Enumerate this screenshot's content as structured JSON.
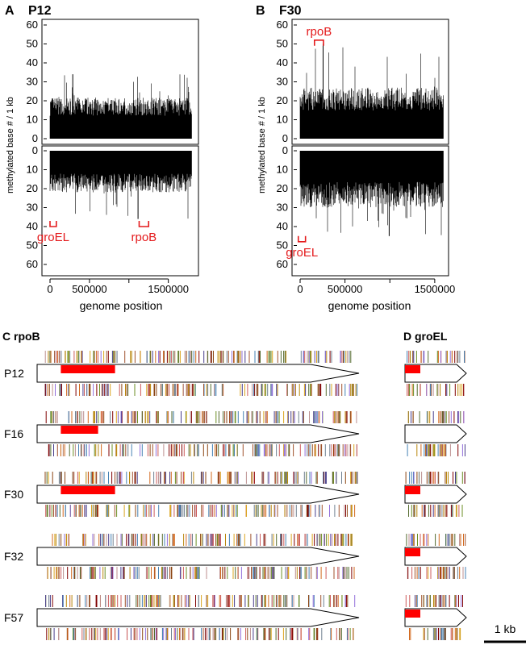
{
  "panels": {
    "A": {
      "letter": "A",
      "name": "P12"
    },
    "B": {
      "letter": "B",
      "name": "F30"
    },
    "C": {
      "title": "C rpoB"
    },
    "D": {
      "title": "D groEL"
    }
  },
  "colors": {
    "annotation_red": "#e41a1c",
    "bars": "#000000",
    "gene_fill": "#ffffff",
    "methylation_region": "#ff0000"
  },
  "chart_data": [
    {
      "type": "bar",
      "panel": "A",
      "title": "P12",
      "xlabel": "genome position",
      "ylabel": "methylated base # / 1 kb",
      "x_ticks": [
        "0",
        "500000",
        "1500000"
      ],
      "x_tick_values": [
        0,
        500000,
        1500000
      ],
      "xlim": [
        0,
        1800000
      ],
      "top_strand": {
        "ylim": [
          0,
          60
        ],
        "y_ticks": [
          "0",
          "10",
          "20",
          "30",
          "40",
          "50",
          "60"
        ],
        "typical_range": [
          0,
          22
        ],
        "max": 34
      },
      "bottom_strand": {
        "ylim": [
          0,
          60
        ],
        "y_ticks": [
          "0",
          "10",
          "20",
          "30",
          "40",
          "50",
          "60"
        ],
        "typical_range": [
          0,
          22
        ],
        "max": 36
      },
      "annotations": [
        {
          "label": "groEL",
          "strand": "bottom",
          "x_start": 0,
          "x_end": 80000,
          "depth": 40
        },
        {
          "label": "rpoB",
          "strand": "bottom",
          "x_start": 1130000,
          "x_end": 1250000,
          "depth": 40
        }
      ]
    },
    {
      "type": "bar",
      "panel": "B",
      "title": "F30",
      "xlabel": "genome position",
      "ylabel": "methylated base # / 1 kb",
      "x_ticks": [
        "0",
        "500000",
        "1500000"
      ],
      "x_tick_values": [
        0,
        500000,
        1500000
      ],
      "xlim": [
        0,
        1600000
      ],
      "top_strand": {
        "ylim": [
          0,
          60
        ],
        "y_ticks": [
          "0",
          "10",
          "20",
          "30",
          "40",
          "50",
          "60"
        ],
        "typical_range": [
          0,
          27
        ],
        "max": 50
      },
      "bottom_strand": {
        "ylim": [
          0,
          60
        ],
        "y_ticks": [
          "0",
          "10",
          "20",
          "30",
          "40",
          "50",
          "60"
        ],
        "typical_range": [
          0,
          30
        ],
        "max": 45
      },
      "annotations": [
        {
          "label": "rpoB",
          "strand": "top",
          "x_start": 160000,
          "x_end": 260000,
          "height": 52
        },
        {
          "label": "groEL",
          "strand": "bottom",
          "x_start": -20000,
          "x_end": 60000,
          "depth": 48
        }
      ]
    }
  ],
  "gene_tracks": {
    "rows": [
      "P12",
      "F16",
      "F30",
      "F32",
      "F57"
    ],
    "rpoB": {
      "title": "C rpoB",
      "red_regions": [
        {
          "row": "P12",
          "start_kb": 0.28,
          "end_kb": 0.92
        },
        {
          "row": "F16",
          "start_kb": 0.28,
          "end_kb": 0.72
        },
        {
          "row": "F30",
          "start_kb": 0.28,
          "end_kb": 0.92
        },
        {
          "row": "F32",
          "start_kb": null,
          "end_kb": null
        },
        {
          "row": "F57",
          "start_kb": null,
          "end_kb": null
        }
      ]
    },
    "groEL": {
      "title": "D groEL",
      "red_regions": [
        {
          "row": "P12",
          "start_kb": 0.0,
          "end_kb": 0.18
        },
        {
          "row": "F16",
          "start_kb": null,
          "end_kb": null
        },
        {
          "row": "F30",
          "start_kb": 0.0,
          "end_kb": 0.18
        },
        {
          "row": "F32",
          "start_kb": 0.0,
          "end_kb": 0.18
        },
        {
          "row": "F57",
          "start_kb": 0.0,
          "end_kb": 0.18
        }
      ]
    },
    "scale_bar_label": "1 kb",
    "tick_colors": [
      "#8b4513",
      "#d2691e",
      "#9370db",
      "#708090",
      "#cd5c5c",
      "#6b8e23",
      "#daa520",
      "#4682b4",
      "#a0522d",
      "#bc8f8f",
      "#556b2f",
      "#800000",
      "#b8860b",
      "#483d8b"
    ]
  }
}
